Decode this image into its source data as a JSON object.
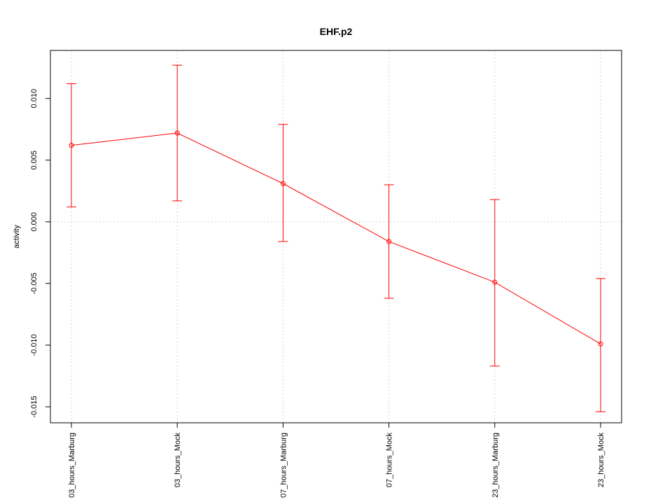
{
  "chart_data": {
    "type": "line",
    "title": "EHF.p2",
    "xlabel": "",
    "ylabel": "activity",
    "categories": [
      "03_hours_Marburg",
      "03_hours_Mock",
      "07_hours_Marburg",
      "07_hours_Mock",
      "23_hours_Marburg",
      "23_hours_Mock"
    ],
    "series": [
      {
        "values": [
          0.0062,
          0.0072,
          0.0031,
          -0.0016,
          -0.0049,
          -0.0099
        ],
        "lower": [
          0.0012,
          0.0017,
          -0.0016,
          -0.0062,
          -0.0117,
          -0.0154
        ],
        "upper": [
          0.0112,
          0.0127,
          0.0079,
          0.003,
          0.0018,
          -0.0046
        ]
      }
    ],
    "yticks": [
      -0.015,
      -0.01,
      -0.005,
      0.0,
      0.005,
      0.01
    ],
    "ytick_labels": [
      "-0.015",
      "-0.010",
      "-0.005",
      "0.000",
      "0.005",
      "0.010"
    ],
    "ylim": [
      -0.0163,
      0.0139
    ],
    "grid": true,
    "colors": {
      "series": "#ff0000",
      "grid": "#d3d3d3",
      "axis": "#000000"
    }
  }
}
